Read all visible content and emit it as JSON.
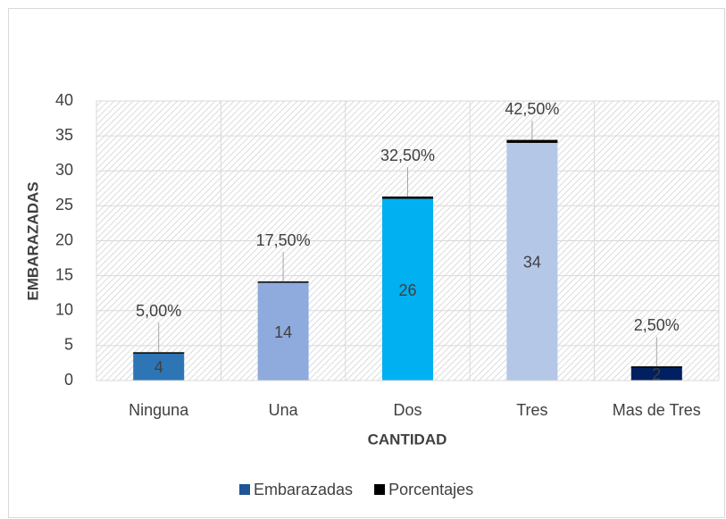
{
  "chart_data": {
    "type": "bar",
    "stacked": true,
    "x_label": "CANTIDAD",
    "y_label": "EMBARAZADAS",
    "categories": [
      "Ninguna",
      "Una",
      "Dos",
      "Tres",
      "Mas de Tres"
    ],
    "series": [
      {
        "name": "Embarazadas",
        "color": "#1f5597",
        "point_colors": [
          "#2e75b6",
          "#8faadc",
          "#00b0f0",
          "#b4c7e7",
          "#002060"
        ],
        "values": [
          4,
          14,
          26,
          34,
          2
        ]
      },
      {
        "name": "Porcentajes",
        "color": "#000000",
        "values": [
          0.05,
          0.175,
          0.325,
          0.425,
          0.025
        ],
        "value_labels": [
          "5,00%",
          "17,50%",
          "32,50%",
          "42,50%",
          "2,50%"
        ]
      }
    ],
    "ylim": [
      0,
      40
    ],
    "yticks": [
      0,
      5,
      10,
      15,
      20,
      25,
      30,
      35,
      40
    ],
    "grid": true,
    "legend": "bottom"
  }
}
